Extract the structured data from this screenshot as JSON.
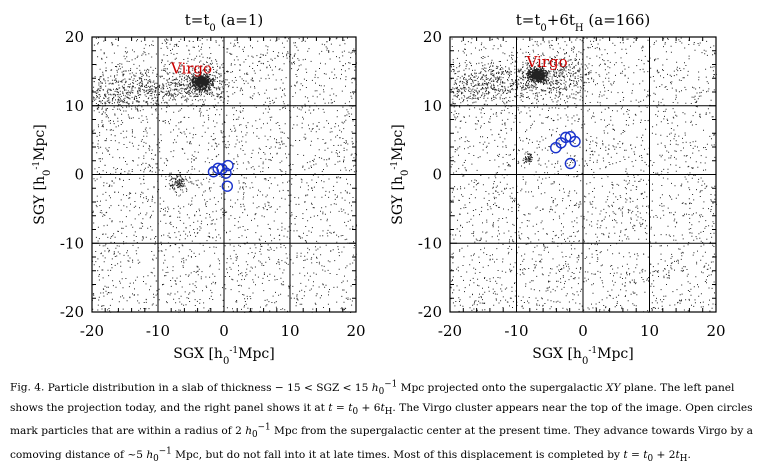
{
  "figure": {
    "panels": [
      {
        "title_parts": [
          "t=t",
          "0",
          " (a=1)"
        ],
        "xlabel_parts": [
          "SGX [h",
          "0",
          "-1",
          "Mpc]"
        ],
        "ylabel_parts": [
          "SGY [h",
          "0",
          "-1",
          "Mpc]"
        ],
        "annotation": "Virgo",
        "annotation_color": "#cc0000",
        "circle_color": "#1a33cc",
        "xticks": [
          "-20",
          "-10",
          "0",
          "10",
          "20"
        ],
        "yticks": [
          "20",
          "10",
          "0",
          "-10",
          "-20"
        ],
        "xlim": [
          -20,
          20
        ],
        "ylim": [
          -20,
          20
        ],
        "grid": true,
        "cluster_center": [
          -3.5,
          13.5
        ],
        "circles": [
          {
            "x": -1.6,
            "y": 0.4
          },
          {
            "x": -0.9,
            "y": 0.9
          },
          {
            "x": -0.3,
            "y": 0.8
          },
          {
            "x": 0.6,
            "y": 1.3
          },
          {
            "x": 0.3,
            "y": 0.2
          },
          {
            "x": 0.5,
            "y": -1.7
          }
        ]
      },
      {
        "title_parts": [
          "t=t",
          "0",
          "+6t",
          "H",
          " (a=166)"
        ],
        "xlabel_parts": [
          "SGX [h",
          "0",
          "-1",
          "Mpc]"
        ],
        "ylabel_parts": [
          "SGY [h",
          "0",
          "-1",
          "Mpc]"
        ],
        "annotation": "Virgo",
        "annotation_color": "#cc0000",
        "circle_color": "#1a33cc",
        "xticks": [
          "-20",
          "-10",
          "0",
          "10",
          "20"
        ],
        "yticks": [
          "20",
          "10",
          "0",
          "-10",
          "-20"
        ],
        "xlim": [
          -20,
          20
        ],
        "ylim": [
          -20,
          20
        ],
        "grid": true,
        "cluster_center": [
          -7,
          14.5
        ],
        "circles": [
          {
            "x": -4.1,
            "y": 3.9
          },
          {
            "x": -3.3,
            "y": 4.6
          },
          {
            "x": -2.6,
            "y": 5.4
          },
          {
            "x": -1.9,
            "y": 5.5
          },
          {
            "x": -1.2,
            "y": 4.8
          },
          {
            "x": -1.9,
            "y": 1.6
          }
        ]
      }
    ]
  },
  "caption": {
    "label": "Fig. 4.",
    "segments": [
      "Particle distribution in a slab of thickness  − 15 < SGZ < 15 ",
      "h",
      "0",
      "−1",
      " Mpc projected onto the supergalactic ",
      "XY",
      " plane. The left panel shows the projection today, and the right panel shows it at ",
      "t",
      " = ",
      "t",
      "0",
      " + 6",
      "t",
      "H",
      ". The Virgo cluster appears near the top of the image. Open circles mark particles that are within a radius of 2 ",
      "h",
      "0",
      "−1",
      " Mpc from the supergalactic center at the present time. They advance towards Virgo by a comoving distance of  ~5 ",
      "h",
      "0",
      "−1",
      " Mpc, but do not fall into it at late times. Most of this displacement is completed by ",
      "t",
      " = ",
      "t",
      "0",
      " + 2",
      "t",
      "H",
      "."
    ]
  }
}
